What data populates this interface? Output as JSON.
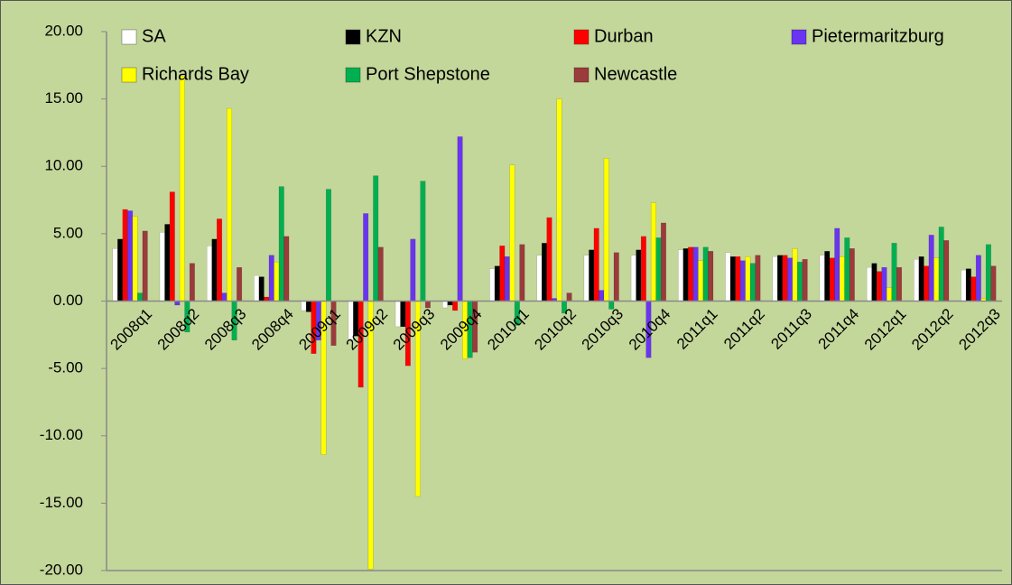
{
  "chart_data": {
    "type": "bar",
    "categories": [
      "2008q1",
      "2008q2",
      "2008q3",
      "2008q4",
      "2009q1",
      "2009q2",
      "2009q3",
      "2009q4",
      "2010q1",
      "2010q2",
      "2010q3",
      "2010q4",
      "2011q1",
      "2011q2",
      "2011q3",
      "2011q4",
      "2012q1",
      "2012q2",
      "2012q3"
    ],
    "series": [
      {
        "name": "SA",
        "color": "#ffffff",
        "values": [
          3.9,
          5.1,
          4.1,
          1.9,
          -0.7,
          -2.9,
          -1.9,
          -0.5,
          2.4,
          3.4,
          3.4,
          3.4,
          3.8,
          3.6,
          3.3,
          3.4,
          2.5,
          3.1,
          2.3
        ]
      },
      {
        "name": "KZN",
        "color": "#000000",
        "values": [
          4.6,
          5.7,
          4.6,
          1.8,
          -0.8,
          -2.6,
          -1.9,
          -0.3,
          2.6,
          4.3,
          3.8,
          3.8,
          3.9,
          3.3,
          3.4,
          3.7,
          2.8,
          3.3,
          2.4
        ]
      },
      {
        "name": "Durban",
        "color": "#ff0000",
        "values": [
          6.8,
          8.1,
          6.1,
          0.3,
          -3.9,
          -6.4,
          -4.8,
          -0.7,
          4.1,
          6.2,
          5.4,
          4.8,
          4.0,
          3.3,
          3.4,
          3.2,
          2.2,
          2.6,
          1.8
        ]
      },
      {
        "name": "Pietermaritzburg",
        "color": "#6a35f0",
        "values": [
          6.7,
          -0.3,
          0.6,
          3.4,
          -2.9,
          6.5,
          4.6,
          12.2,
          3.3,
          0.2,
          0.8,
          -4.2,
          4.0,
          3.0,
          3.2,
          5.4,
          2.5,
          4.9,
          3.4
        ]
      },
      {
        "name": "Richards Bay",
        "color": "#ffff00",
        "values": [
          6.3,
          16.7,
          14.3,
          2.9,
          -11.4,
          -19.9,
          -14.5,
          -4.3,
          10.1,
          15.0,
          10.6,
          7.3,
          3.0,
          3.3,
          3.9,
          3.3,
          1.0,
          3.2,
          0.2
        ]
      },
      {
        "name": "Port Shepstone",
        "color": "#00b050",
        "values": [
          0.6,
          -2.3,
          -2.9,
          8.5,
          8.3,
          9.3,
          8.9,
          -4.2,
          -1.8,
          -0.9,
          -0.6,
          4.7,
          4.0,
          2.8,
          2.9,
          4.7,
          4.3,
          5.5,
          4.2
        ]
      },
      {
        "name": "Newcastle",
        "color": "#9b3b3b",
        "values": [
          5.2,
          2.8,
          2.5,
          4.8,
          -3.3,
          4.0,
          -0.5,
          -3.8,
          4.2,
          0.6,
          3.6,
          5.8,
          3.7,
          3.4,
          3.1,
          3.9,
          2.5,
          4.5,
          2.6
        ]
      }
    ],
    "ylim": [
      -20,
      20
    ],
    "yticks": [
      {
        "value": -20,
        "label": "-20.00"
      },
      {
        "value": -15,
        "label": "-15.00"
      },
      {
        "value": -10,
        "label": "-10.00"
      },
      {
        "value": -5,
        "label": "-5.00"
      },
      {
        "value": 0,
        "label": "0.00"
      },
      {
        "value": 5,
        "label": "5.00"
      },
      {
        "value": 10,
        "label": "10.00"
      },
      {
        "value": 15,
        "label": "15.00"
      },
      {
        "value": 20,
        "label": "20.00"
      }
    ],
    "grid": false,
    "legend": "top"
  }
}
